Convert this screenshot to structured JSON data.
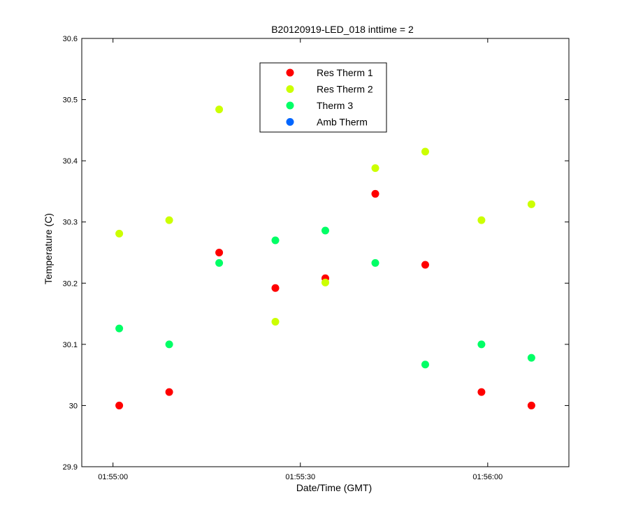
{
  "chart_data": {
    "type": "scatter",
    "title": "B20120919-LED_018 inttime = 2",
    "xlabel": "Date/Time (GMT)",
    "ylabel": "Temperature (C)",
    "xlim": [
      "01:54:55",
      "01:56:13"
    ],
    "ylim": [
      29.9,
      30.6
    ],
    "xticks": [
      "01:55:00",
      "01:55:30",
      "01:56:00"
    ],
    "yticks": [
      "29.9",
      "30",
      "30.1",
      "30.2",
      "30.3",
      "30.4",
      "30.5",
      "30.6"
    ],
    "grid": false,
    "legend_position": "top-center",
    "x": [
      "01:55:01",
      "01:55:09",
      "01:55:17",
      "01:55:26",
      "01:55:34",
      "01:55:42",
      "01:55:50",
      "01:55:59",
      "01:56:07"
    ],
    "series": [
      {
        "name": "Res Therm 1",
        "color": "#ff0000",
        "values": [
          30.0,
          30.022,
          30.25,
          30.192,
          30.208,
          30.346,
          30.23,
          30.022,
          30.0
        ]
      },
      {
        "name": "Res Therm 2",
        "color": "#ccff00",
        "values": [
          30.281,
          30.303,
          30.484,
          30.137,
          30.201,
          30.388,
          30.415,
          30.303,
          30.329
        ]
      },
      {
        "name": "Therm 3",
        "color": "#00ff66",
        "values": [
          30.126,
          30.1,
          30.233,
          30.27,
          30.286,
          30.233,
          30.067,
          30.1,
          30.078
        ]
      },
      {
        "name": "Amb Therm",
        "color": "#0066ff",
        "values": []
      }
    ]
  }
}
